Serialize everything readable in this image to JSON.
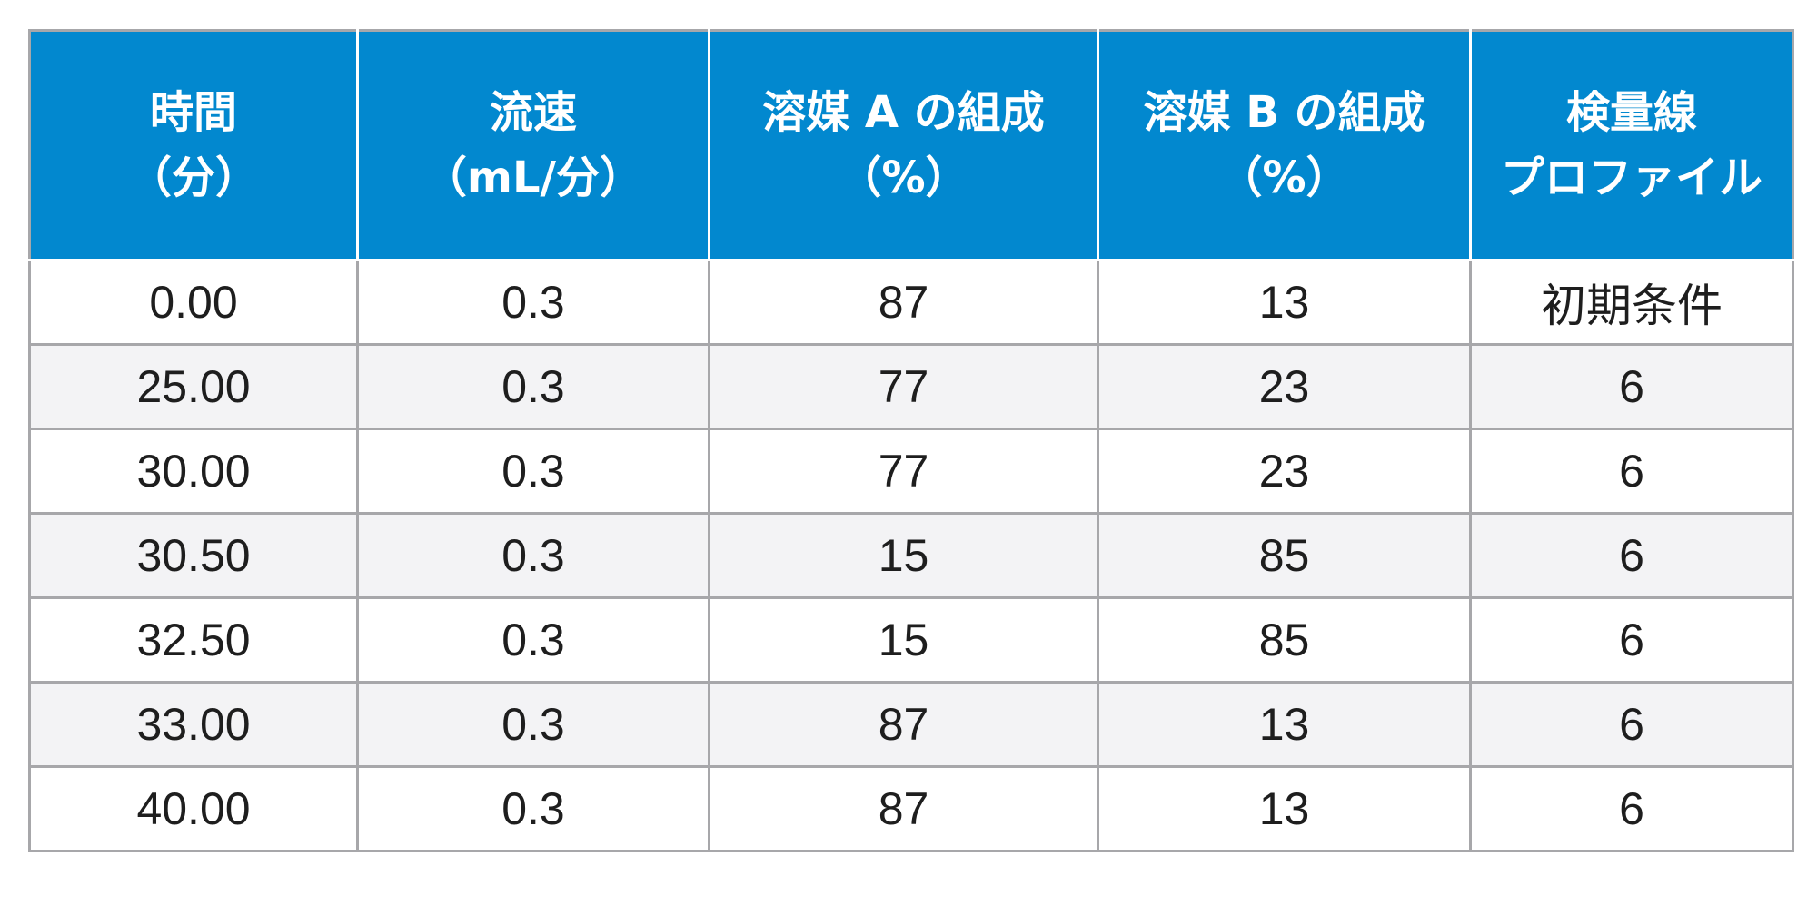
{
  "table": {
    "headers": [
      {
        "line1": "時間",
        "line2": "（分）"
      },
      {
        "line1": "流速",
        "line2": "（mL/分）"
      },
      {
        "line1": "溶媒 A の組成",
        "line2": "（%）"
      },
      {
        "line1": "溶媒 B の組成",
        "line2": "（%）"
      },
      {
        "line1": "検量線",
        "line2": "プロファイル"
      }
    ],
    "rows": [
      [
        "0.00",
        "0.3",
        "87",
        "13",
        "初期条件"
      ],
      [
        "25.00",
        "0.3",
        "77",
        "23",
        "6"
      ],
      [
        "30.00",
        "0.3",
        "77",
        "23",
        "6"
      ],
      [
        "30.50",
        "0.3",
        "15",
        "85",
        "6"
      ],
      [
        "32.50",
        "0.3",
        "15",
        "85",
        "6"
      ],
      [
        "33.00",
        "0.3",
        "87",
        "13",
        "6"
      ],
      [
        "40.00",
        "0.3",
        "87",
        "13",
        "6"
      ]
    ]
  },
  "colors": {
    "header_background": "#0288cf",
    "header_text": "#ffffff",
    "row_alt_background": "#f3f3f5",
    "grid_line": "#a7a7aa"
  }
}
